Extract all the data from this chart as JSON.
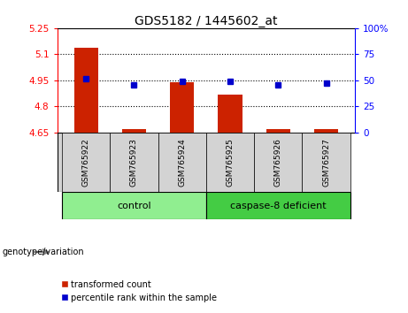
{
  "title": "GDS5182 / 1445602_at",
  "samples": [
    "GSM765922",
    "GSM765923",
    "GSM765924",
    "GSM765925",
    "GSM765926",
    "GSM765927"
  ],
  "red_values": [
    5.14,
    4.67,
    4.94,
    4.87,
    4.67,
    4.67
  ],
  "blue_values": [
    52,
    46,
    49,
    49,
    46,
    47
  ],
  "ylim_left": [
    4.65,
    5.25
  ],
  "ylim_right": [
    0,
    100
  ],
  "yticks_left": [
    4.65,
    4.8,
    4.95,
    5.1,
    5.25
  ],
  "ytick_labels_left": [
    "4.65",
    "4.8",
    "4.95",
    "5.1",
    "5.25"
  ],
  "yticks_right": [
    0,
    25,
    50,
    75,
    100
  ],
  "ytick_labels_right": [
    "0",
    "25",
    "50",
    "75",
    "100%"
  ],
  "hlines": [
    4.8,
    4.95,
    5.1
  ],
  "group_label": "genotype/variation",
  "groups": [
    {
      "label": "control",
      "indices": [
        0,
        1,
        2
      ],
      "color": "#90EE90"
    },
    {
      "label": "caspase-8 deficient",
      "indices": [
        3,
        4,
        5
      ],
      "color": "#44CC44"
    }
  ],
  "bar_color": "#CC2200",
  "dot_color": "#0000CC",
  "bar_bottom": 4.65,
  "bar_width": 0.5,
  "background_color": "#FFFFFF",
  "plot_bg_color": "#FFFFFF",
  "xtick_bg_color": "#D3D3D3",
  "legend_red": "transformed count",
  "legend_blue": "percentile rank within the sample",
  "title_fontsize": 10,
  "tick_fontsize": 7.5,
  "label_fontsize": 8
}
